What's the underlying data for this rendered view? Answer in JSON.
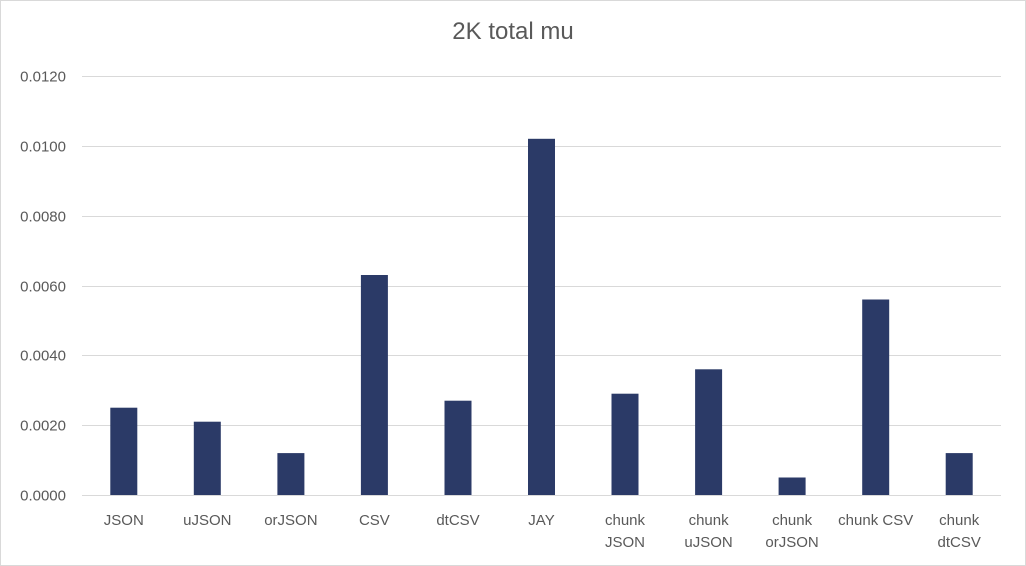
{
  "chart_data": {
    "type": "bar",
    "title": "2K total mu",
    "xlabel": "",
    "ylabel": "",
    "categories": [
      "JSON",
      "uJSON",
      "orJSON",
      "CSV",
      "dtCSV",
      "JAY",
      "chunk JSON",
      "chunk uJSON",
      "chunk orJSON",
      "chunk CSV",
      "chunk dtCSV"
    ],
    "category_label_lines": [
      [
        "JSON"
      ],
      [
        "uJSON"
      ],
      [
        "orJSON"
      ],
      [
        "CSV"
      ],
      [
        "dtCSV"
      ],
      [
        "JAY"
      ],
      [
        "chunk",
        "JSON"
      ],
      [
        "chunk",
        "uJSON"
      ],
      [
        "chunk",
        "orJSON"
      ],
      [
        "chunk CSV"
      ],
      [
        "chunk",
        "dtCSV"
      ]
    ],
    "values": [
      0.0025,
      0.0021,
      0.0012,
      0.0063,
      0.0027,
      0.0102,
      0.0029,
      0.0036,
      0.0005,
      0.0056,
      0.0012
    ],
    "ylim": [
      0,
      0.012
    ],
    "yticks": [
      0,
      0.002,
      0.004,
      0.006,
      0.008,
      0.01,
      0.012
    ],
    "ytick_labels": [
      "0.0000",
      "0.0020",
      "0.0040",
      "0.0060",
      "0.0080",
      "0.0100",
      "0.0120"
    ],
    "grid": true,
    "legend": "none",
    "bar_color": "#2b3a67",
    "grid_color": "#d9d9d9",
    "text_color": "#595959"
  }
}
